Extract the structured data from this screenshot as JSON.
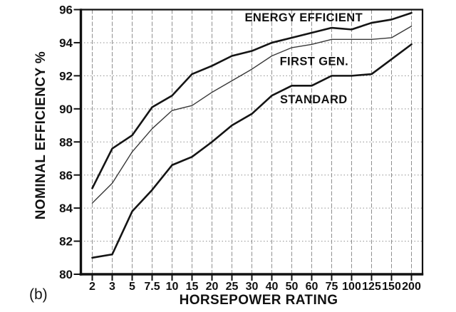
{
  "figure_label": "(b)",
  "colors": {
    "thick_line": "#141414",
    "thin_line": "#383838",
    "grid": "#8f8f8f",
    "frame": "#111111",
    "text": "#111111",
    "background": "#ffffff"
  },
  "chart_data": {
    "type": "line",
    "title": "",
    "xlabel": "HORSEPOWER RATING",
    "ylabel": "NOMINAL EFFICIENCY %",
    "x_scale": "categorical",
    "categories": [
      "2",
      "3",
      "5",
      "7.5",
      "10",
      "15",
      "20",
      "25",
      "30",
      "40",
      "50",
      "60",
      "75",
      "100",
      "125",
      "150",
      "200"
    ],
    "ylim": [
      80,
      96
    ],
    "yticks": [
      80,
      82,
      84,
      86,
      88,
      90,
      92,
      94,
      96
    ],
    "grid": true,
    "legend_position": "inline-labels",
    "series": [
      {
        "name": "ENERGY EFFICIENT",
        "emphasis": "bold",
        "values": [
          85.2,
          87.6,
          88.4,
          90.1,
          90.8,
          92.1,
          92.6,
          93.2,
          93.5,
          94.0,
          94.3,
          94.6,
          94.9,
          94.8,
          95.2,
          95.4,
          95.8
        ]
      },
      {
        "name": "FIRST GEN.",
        "emphasis": "light",
        "values": [
          84.3,
          85.5,
          87.4,
          88.8,
          89.9,
          90.2,
          91.0,
          91.7,
          92.4,
          93.2,
          93.7,
          93.9,
          94.2,
          94.2,
          94.2,
          94.3,
          95.0
        ]
      },
      {
        "name": "STANDARD",
        "emphasis": "bold",
        "values": [
          81.0,
          81.2,
          83.8,
          85.1,
          86.6,
          87.1,
          88.0,
          89.0,
          89.7,
          90.8,
          91.4,
          91.4,
          92.0,
          92.0,
          92.1,
          93.0,
          93.9
        ]
      }
    ],
    "annotations": [
      {
        "text": "ENERGY EFFICIENT",
        "cat_index": 10.6,
        "y_value": 95.55
      },
      {
        "text": "FIRST GEN.",
        "cat_index": 11.12,
        "y_value": 92.9
      },
      {
        "text": "STANDARD",
        "cat_index": 11.1,
        "y_value": 90.6
      }
    ]
  }
}
